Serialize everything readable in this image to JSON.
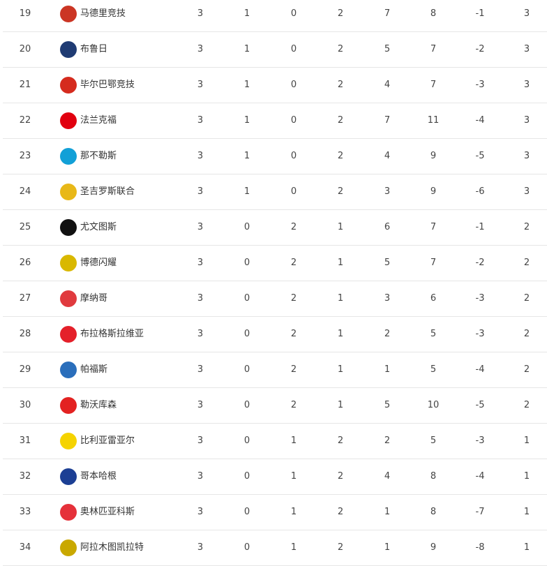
{
  "standings": [
    {
      "rank": "19",
      "team": "马德里竞技",
      "logo": "atletico-madrid-crest-icon",
      "color": "#cb3524",
      "p": "3",
      "w": "1",
      "d": "0",
      "l": "2",
      "gf": "7",
      "ga": "8",
      "gd": "-1",
      "pts": "3"
    },
    {
      "rank": "20",
      "team": "布鲁日",
      "logo": "club-brugge-crest-icon",
      "color": "#1f3b73",
      "p": "3",
      "w": "1",
      "d": "0",
      "l": "2",
      "gf": "5",
      "ga": "7",
      "gd": "-2",
      "pts": "3"
    },
    {
      "rank": "21",
      "team": "毕尔巴鄂竞技",
      "logo": "athletic-bilbao-crest-icon",
      "color": "#d52b1e",
      "p": "3",
      "w": "1",
      "d": "0",
      "l": "2",
      "gf": "4",
      "ga": "7",
      "gd": "-3",
      "pts": "3"
    },
    {
      "rank": "22",
      "team": "法兰克福",
      "logo": "eintracht-frankfurt-crest-icon",
      "color": "#e1000f",
      "p": "3",
      "w": "1",
      "d": "0",
      "l": "2",
      "gf": "7",
      "ga": "11",
      "gd": "-4",
      "pts": "3"
    },
    {
      "rank": "23",
      "team": "那不勒斯",
      "logo": "napoli-crest-icon",
      "color": "#12a0d7",
      "p": "3",
      "w": "1",
      "d": "0",
      "l": "2",
      "gf": "4",
      "ga": "9",
      "gd": "-5",
      "pts": "3"
    },
    {
      "rank": "24",
      "team": "圣吉罗斯联合",
      "logo": "union-saint-gilloise-crest-icon",
      "color": "#e8b818",
      "p": "3",
      "w": "1",
      "d": "0",
      "l": "2",
      "gf": "3",
      "ga": "9",
      "gd": "-6",
      "pts": "3"
    },
    {
      "rank": "25",
      "team": "尤文图斯",
      "logo": "juventus-crest-icon",
      "color": "#111111",
      "p": "3",
      "w": "0",
      "d": "2",
      "l": "1",
      "gf": "6",
      "ga": "7",
      "gd": "-1",
      "pts": "2"
    },
    {
      "rank": "26",
      "team": "博德闪耀",
      "logo": "bodo-glimt-crest-icon",
      "color": "#d9b800",
      "p": "3",
      "w": "0",
      "d": "2",
      "l": "1",
      "gf": "5",
      "ga": "7",
      "gd": "-2",
      "pts": "2"
    },
    {
      "rank": "27",
      "team": "摩纳哥",
      "logo": "monaco-crest-icon",
      "color": "#e03a3e",
      "p": "3",
      "w": "0",
      "d": "2",
      "l": "1",
      "gf": "3",
      "ga": "6",
      "gd": "-3",
      "pts": "2"
    },
    {
      "rank": "28",
      "team": "布拉格斯拉维亚",
      "logo": "slavia-prague-star-icon",
      "color": "#e4202a",
      "p": "3",
      "w": "0",
      "d": "2",
      "l": "1",
      "gf": "2",
      "ga": "5",
      "gd": "-3",
      "pts": "2"
    },
    {
      "rank": "29",
      "team": "帕福斯",
      "logo": "pafos-crest-icon",
      "color": "#2a6ebb",
      "p": "3",
      "w": "0",
      "d": "2",
      "l": "1",
      "gf": "1",
      "ga": "5",
      "gd": "-4",
      "pts": "2"
    },
    {
      "rank": "30",
      "team": "勒沃库森",
      "logo": "leverkusen-crest-icon",
      "color": "#e32221",
      "p": "3",
      "w": "0",
      "d": "2",
      "l": "1",
      "gf": "5",
      "ga": "10",
      "gd": "-5",
      "pts": "2"
    },
    {
      "rank": "31",
      "team": "比利亚雷亚尔",
      "logo": "villarreal-crest-icon",
      "color": "#f5d300",
      "p": "3",
      "w": "0",
      "d": "1",
      "l": "2",
      "gf": "2",
      "ga": "5",
      "gd": "-3",
      "pts": "1"
    },
    {
      "rank": "32",
      "team": "哥本哈根",
      "logo": "copenhagen-crest-icon",
      "color": "#1c3f94",
      "p": "3",
      "w": "0",
      "d": "1",
      "l": "2",
      "gf": "4",
      "ga": "8",
      "gd": "-4",
      "pts": "1"
    },
    {
      "rank": "33",
      "team": "奥林匹亚科斯",
      "logo": "olympiacos-crest-icon",
      "color": "#e5313a",
      "p": "3",
      "w": "0",
      "d": "1",
      "l": "2",
      "gf": "1",
      "ga": "8",
      "gd": "-7",
      "pts": "1"
    },
    {
      "rank": "34",
      "team": "阿拉木图凯拉特",
      "logo": "kairat-crest-icon",
      "color": "#c9a800",
      "p": "3",
      "w": "0",
      "d": "1",
      "l": "2",
      "gf": "1",
      "ga": "9",
      "gd": "-8",
      "pts": "1"
    }
  ]
}
